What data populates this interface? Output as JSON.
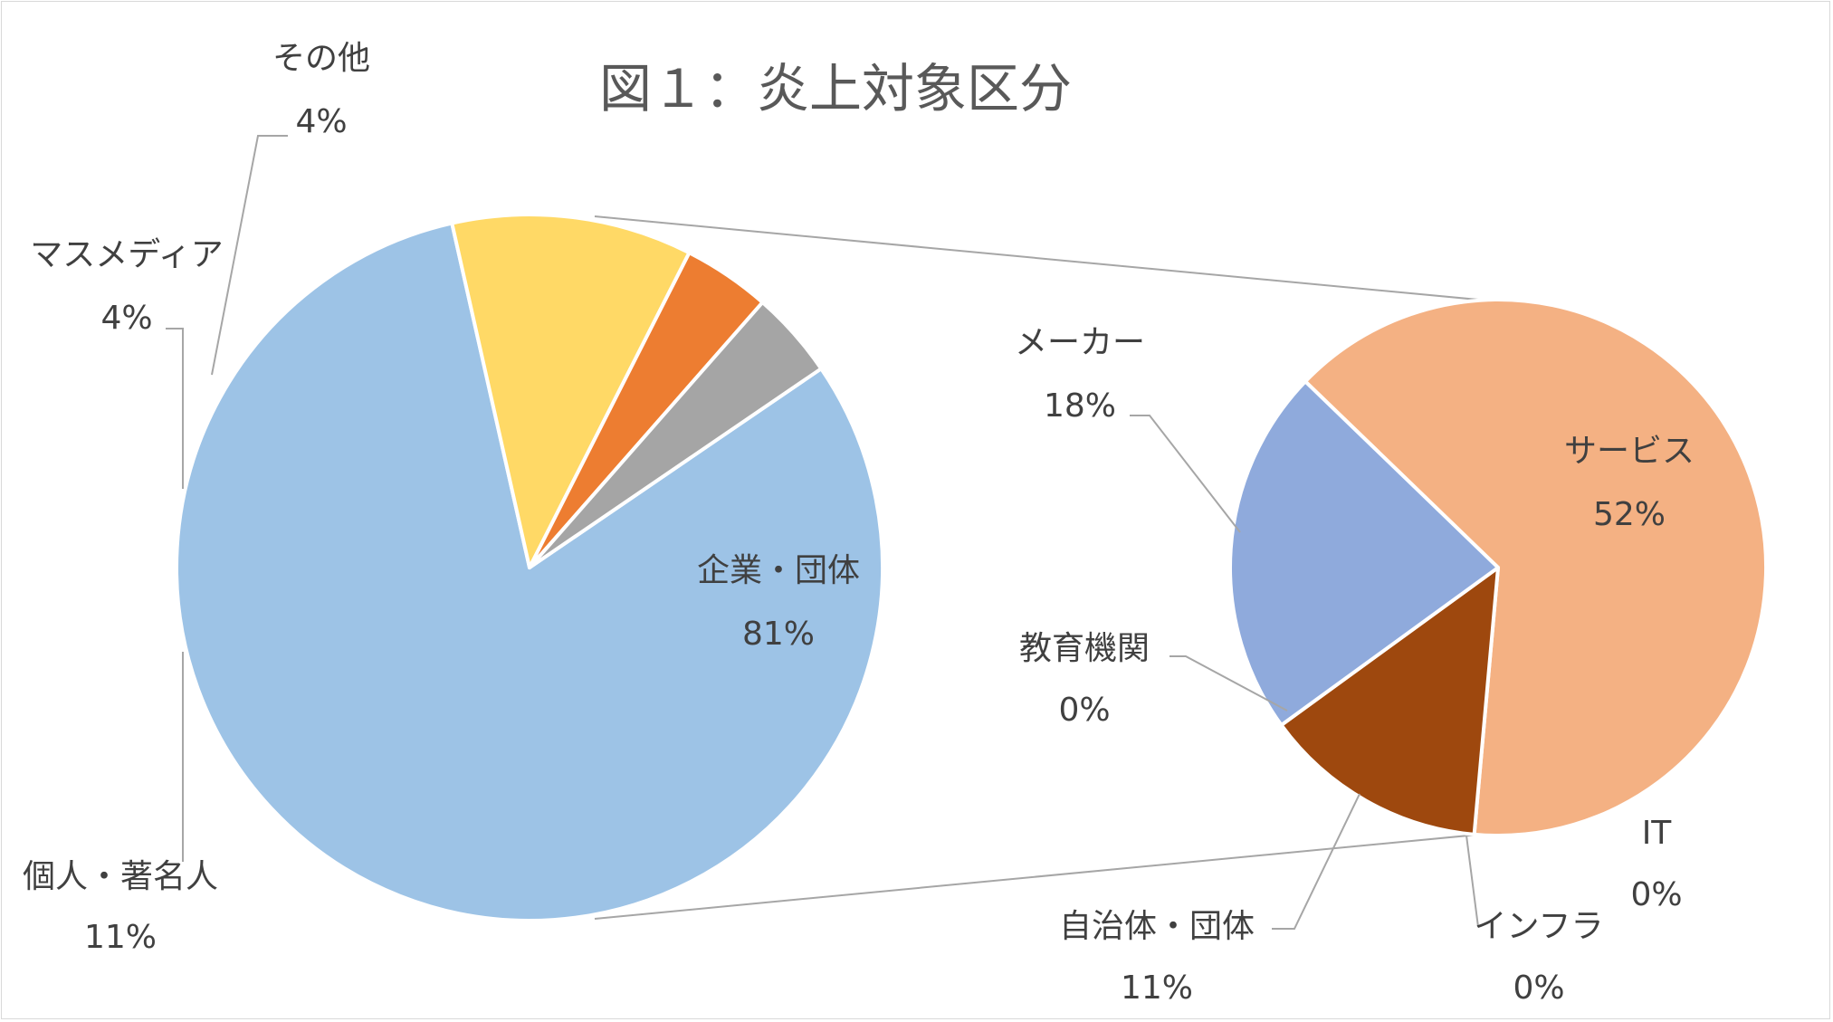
{
  "chart_data": {
    "type": "pie",
    "title": "図１：炎上対象区分",
    "main": {
      "slices": [
        {
          "name": "企業・団体",
          "value": 81,
          "label": "81%",
          "color": "#9dc3e6"
        },
        {
          "name": "個人・著名人",
          "value": 11,
          "label": "11%",
          "color": "#ffd966"
        },
        {
          "name": "マスメディア",
          "value": 4,
          "label": "4%",
          "color": "#ed7d31"
        },
        {
          "name": "その他",
          "value": 4,
          "label": "4%",
          "color": "#a5a5a5"
        }
      ]
    },
    "secondary": {
      "parent": "企業・団体",
      "slices": [
        {
          "name": "サービス",
          "value": 52,
          "label": "52%",
          "color": "#f4b183"
        },
        {
          "name": "IT",
          "value": 0,
          "label": "0%",
          "color": "#f4b183"
        },
        {
          "name": "インフラ",
          "value": 0,
          "label": "0%",
          "color": "#f4b183"
        },
        {
          "name": "自治体・団体",
          "value": 11,
          "label": "11%",
          "color": "#9e480e"
        },
        {
          "name": "教育機関",
          "value": 0,
          "label": "0%",
          "color": "#9e480e"
        },
        {
          "name": "メーカー",
          "value": 18,
          "label": "18%",
          "color": "#8faadc"
        }
      ]
    }
  }
}
